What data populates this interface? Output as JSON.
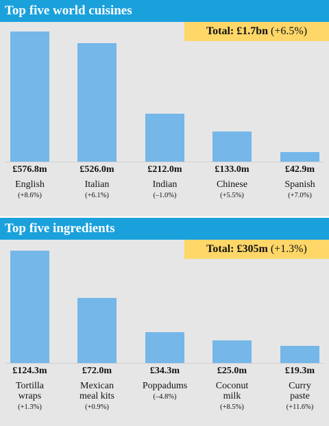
{
  "chart_data": [
    {
      "type": "bar",
      "title": "Top five world cuisines",
      "annotation": {
        "total_label": "Total:",
        "total_value": "£1.7bn",
        "total_change": "(+6.5%)"
      },
      "categories": [
        "English",
        "Italian",
        "Indian",
        "Chinese",
        "Spanish"
      ],
      "values": [
        576.8,
        526.0,
        212.0,
        133.0,
        42.9
      ],
      "value_labels": [
        "£576.8m",
        "£526.0m",
        "£212.0m",
        "£133.0m",
        "£42.9m"
      ],
      "changes": [
        "(+8.6%)",
        "(+6.1%)",
        "(–1.0%)",
        "(+5.5%)",
        "(+7.0%)"
      ],
      "ylim": [
        0,
        576.8
      ]
    },
    {
      "type": "bar",
      "title": "Top five ingredients",
      "annotation": {
        "total_label": "Total:",
        "total_value": "£305m",
        "total_change": "(+1.3%)"
      },
      "categories": [
        "Tortilla\nwraps",
        "Mexican\nmeal kits",
        "Poppadums",
        "Coconut\nmilk",
        "Curry\npaste"
      ],
      "values": [
        124.3,
        72.0,
        34.3,
        25.0,
        19.3
      ],
      "value_labels": [
        "£124.3m",
        "£72.0m",
        "£34.3m",
        "£25.0m",
        "£19.3m"
      ],
      "changes": [
        "(+1.3%)",
        "(+0.9%)",
        "(–4.8%)",
        "(+8.5%)",
        "(+11.6%)"
      ],
      "ylim": [
        0,
        124.3
      ]
    }
  ],
  "colors": {
    "header": "#1aa1dc",
    "bar": "#74b7e8",
    "plot_bg": "#e6e6e6",
    "total_bg": "#fed768"
  }
}
